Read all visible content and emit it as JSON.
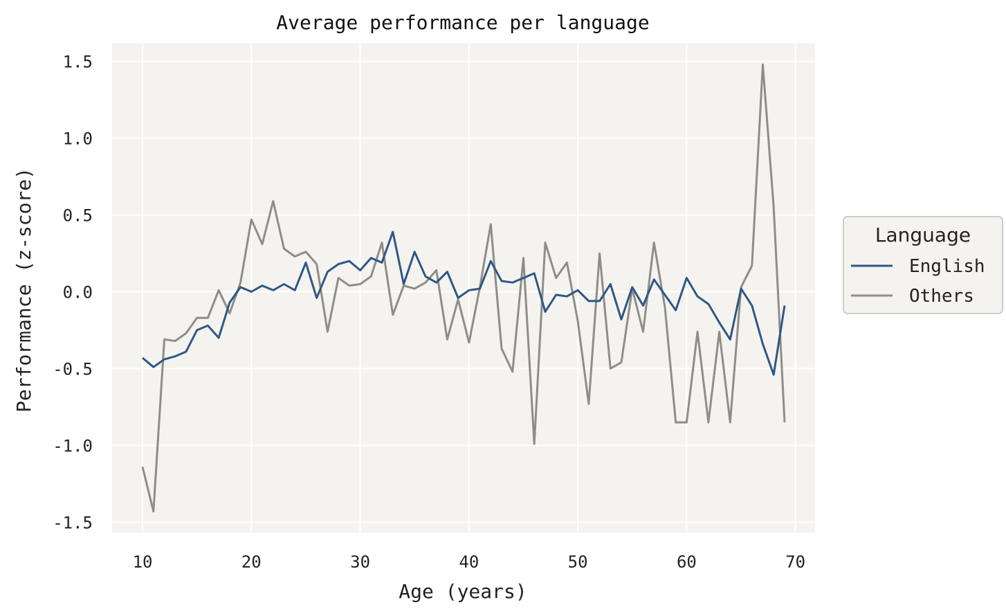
{
  "chart_data": {
    "type": "line",
    "title": "Average performance per language",
    "xlabel": "Age (years)",
    "ylabel": "Performance (z-score)",
    "xlim": [
      7.2,
      71.8
    ],
    "ylim": [
      -1.57,
      1.62
    ],
    "xticks": [
      10,
      20,
      30,
      40,
      50,
      60,
      70
    ],
    "yticks": [
      1.5,
      1.0,
      0.5,
      0.0,
      -0.5,
      -1.0,
      -1.5
    ],
    "ytick_labels": [
      "1.5",
      "1.0",
      "0.5",
      "0.0",
      "-0.5",
      "-1.0",
      "-1.5"
    ],
    "grid": true,
    "background": "#F5F3EF",
    "legend": {
      "title": "Language",
      "placement": "right-center"
    },
    "x": [
      10,
      11,
      12,
      13,
      14,
      15,
      16,
      17,
      18,
      19,
      20,
      21,
      22,
      23,
      24,
      25,
      26,
      27,
      28,
      29,
      30,
      31,
      32,
      33,
      34,
      35,
      36,
      37,
      38,
      39,
      40,
      41,
      42,
      43,
      44,
      45,
      46,
      47,
      48,
      49,
      50,
      51,
      52,
      53,
      54,
      55,
      56,
      57,
      58,
      59,
      60,
      61,
      62,
      63,
      64,
      65,
      66,
      67,
      68,
      69
    ],
    "series": [
      {
        "name": "English",
        "color": "#2E5785",
        "values": [
          -0.43,
          -0.49,
          -0.44,
          -0.42,
          -0.39,
          -0.25,
          -0.22,
          -0.3,
          -0.07,
          0.03,
          0.0,
          0.04,
          0.01,
          0.05,
          0.01,
          0.19,
          -0.04,
          0.13,
          0.18,
          0.2,
          0.14,
          0.22,
          0.19,
          0.39,
          0.05,
          0.26,
          0.1,
          0.06,
          0.13,
          -0.04,
          0.01,
          0.02,
          0.2,
          0.07,
          0.06,
          0.09,
          0.12,
          -0.13,
          -0.02,
          -0.03,
          0.01,
          -0.06,
          -0.06,
          0.05,
          -0.18,
          0.03,
          -0.09,
          0.08,
          -0.02,
          -0.12,
          0.09,
          -0.03,
          -0.08,
          -0.2,
          -0.31,
          0.02,
          -0.09,
          -0.34,
          -0.54,
          -0.09
        ]
      },
      {
        "name": "Others",
        "color": "#8F8D87",
        "values": [
          -1.14,
          -1.43,
          -0.31,
          -0.32,
          -0.27,
          -0.17,
          -0.17,
          0.01,
          -0.14,
          0.06,
          0.47,
          0.31,
          0.59,
          0.28,
          0.23,
          0.26,
          0.18,
          -0.26,
          0.09,
          0.04,
          0.05,
          0.1,
          0.32,
          -0.15,
          0.04,
          0.02,
          0.06,
          0.14,
          -0.31,
          -0.05,
          -0.33,
          0.03,
          0.44,
          -0.37,
          -0.52,
          0.22,
          -0.99,
          0.32,
          0.09,
          0.19,
          -0.19,
          -0.73,
          0.25,
          -0.5,
          -0.46,
          0.02,
          -0.26,
          0.32,
          -0.1,
          -0.85,
          -0.85,
          -0.26,
          -0.85,
          -0.26,
          -0.85,
          0.03,
          0.17,
          1.48,
          0.55,
          -0.85
        ]
      }
    ]
  }
}
